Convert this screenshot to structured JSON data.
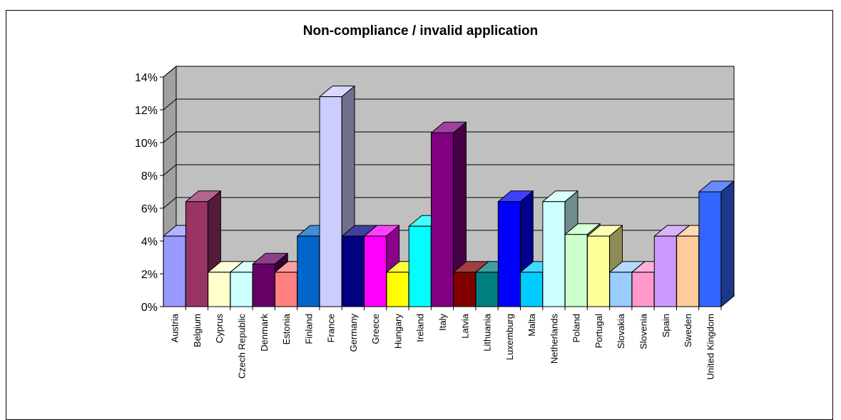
{
  "chart_data": {
    "type": "bar",
    "title": "Non-compliance / invalid application",
    "xlabel": "",
    "ylabel": "",
    "ylim": [
      0,
      14
    ],
    "y_ticks": [
      "0%",
      "2%",
      "4%",
      "6%",
      "8%",
      "10%",
      "12%",
      "14%"
    ],
    "y_unit": "%",
    "grid": true,
    "legend": "none",
    "categories": [
      "Austria",
      "Belgium",
      "Cyprus",
      "Czech Republic",
      "Denmark",
      "Estonia",
      "Finland",
      "France",
      "Germany",
      "Greece",
      "Hungary",
      "Ireland",
      "Italy",
      "Latvia",
      "Lithuania",
      "Luxemburg",
      "Malta",
      "Netherlands",
      "Poland",
      "Portugal",
      "Slovakia",
      "Slovenia",
      "Spain",
      "Sweden",
      "United Kingdom"
    ],
    "values": [
      4.3,
      6.4,
      2.1,
      2.1,
      2.6,
      2.1,
      4.3,
      12.8,
      4.3,
      4.3,
      2.1,
      4.9,
      10.6,
      2.1,
      2.1,
      6.4,
      2.1,
      6.4,
      4.4,
      4.3,
      2.1,
      2.1,
      4.3,
      4.3,
      7.0
    ],
    "colors": [
      "#9999ff",
      "#993366",
      "#ffffcc",
      "#ccffff",
      "#660066",
      "#ff8080",
      "#0066cc",
      "#ccccff",
      "#000080",
      "#ff00ff",
      "#ffff00",
      "#00ffff",
      "#800080",
      "#800000",
      "#008080",
      "#0000ff",
      "#00ccff",
      "#ccffff",
      "#ccffcc",
      "#ffff99",
      "#99ccff",
      "#ff99cc",
      "#cc99ff",
      "#ffcc99",
      "#3366ff"
    ],
    "wall_color": "#c0c0c0",
    "floor_color": "#808080"
  }
}
